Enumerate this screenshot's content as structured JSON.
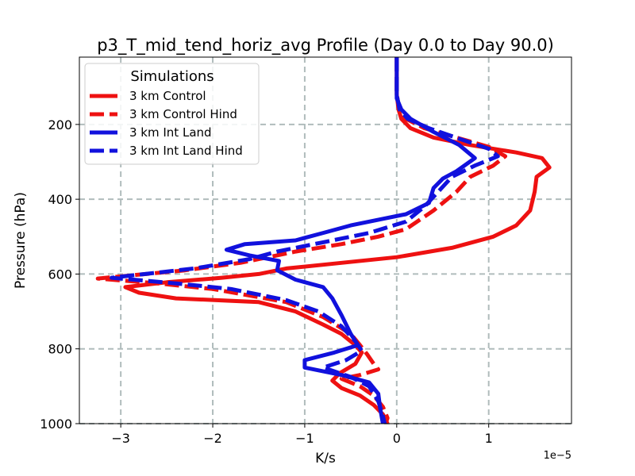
{
  "chart_data": {
    "type": "line",
    "title": "p3_T_mid_tend_horiz_avg Profile (Day 0.0 to Day 90.0)",
    "xlabel": "K/s",
    "ylabel": "Pressure (hPa)",
    "x_offset_label": "1e−5",
    "xlim": [
      -3.45,
      1.9
    ],
    "ylim": [
      1000,
      20
    ],
    "y_inverted": true,
    "grid": true,
    "x_ticks": [
      -3,
      -2,
      -1,
      0,
      1
    ],
    "x_tick_labels": [
      "−3",
      "−2",
      "−1",
      "0",
      "1"
    ],
    "y_ticks": [
      200,
      400,
      600,
      800,
      1000
    ],
    "y_tick_labels": [
      "200",
      "400",
      "600",
      "800",
      "1000"
    ],
    "legend": {
      "title": "Simulations",
      "placement": "top-left"
    },
    "series": [
      {
        "name": "3 km Control",
        "color": "#ee1111",
        "linestyle": "solid",
        "points": [
          [
            0,
            20
          ],
          [
            0,
            120
          ],
          [
            0.02,
            160
          ],
          [
            0.05,
            185
          ],
          [
            0.15,
            210
          ],
          [
            0.4,
            235
          ],
          [
            0.8,
            255
          ],
          [
            1.3,
            275
          ],
          [
            1.58,
            290
          ],
          [
            1.66,
            315
          ],
          [
            1.52,
            340
          ],
          [
            1.5,
            380
          ],
          [
            1.45,
            430
          ],
          [
            1.3,
            470
          ],
          [
            1.05,
            500
          ],
          [
            0.6,
            530
          ],
          [
            0,
            555
          ],
          [
            -0.6,
            570
          ],
          [
            -1.2,
            585
          ],
          [
            -1.5,
            600
          ],
          [
            -1.9,
            610
          ],
          [
            -2.5,
            622
          ],
          [
            -2.95,
            635
          ],
          [
            -2.8,
            650
          ],
          [
            -2.4,
            665
          ],
          [
            -1.5,
            675
          ],
          [
            -1.1,
            700
          ],
          [
            -0.8,
            735
          ],
          [
            -0.6,
            760
          ],
          [
            -0.45,
            790
          ],
          [
            -0.38,
            810
          ],
          [
            -0.45,
            840
          ],
          [
            -0.62,
            865
          ],
          [
            -0.7,
            885
          ],
          [
            -0.6,
            905
          ],
          [
            -0.4,
            925
          ],
          [
            -0.25,
            950
          ],
          [
            -0.15,
            975
          ],
          [
            -0.1,
            1000
          ]
        ]
      },
      {
        "name": "3 km Control Hind",
        "color": "#ee1111",
        "linestyle": "dashed",
        "points": [
          [
            0,
            20
          ],
          [
            0,
            120
          ],
          [
            0.03,
            160
          ],
          [
            0.1,
            185
          ],
          [
            0.3,
            210
          ],
          [
            0.65,
            235
          ],
          [
            1.0,
            260
          ],
          [
            1.18,
            285
          ],
          [
            1.05,
            310
          ],
          [
            0.8,
            340
          ],
          [
            0.65,
            380
          ],
          [
            0.4,
            430
          ],
          [
            0.1,
            480
          ],
          [
            -0.2,
            500
          ],
          [
            -0.6,
            520
          ],
          [
            -1.1,
            540
          ],
          [
            -1.5,
            560
          ],
          [
            -1.7,
            570
          ],
          [
            -2.3,
            590
          ],
          [
            -3.25,
            612
          ],
          [
            -2.6,
            625
          ],
          [
            -2.0,
            640
          ],
          [
            -1.2,
            675
          ],
          [
            -0.8,
            715
          ],
          [
            -0.5,
            760
          ],
          [
            -0.4,
            790
          ],
          [
            -0.32,
            815
          ],
          [
            -0.25,
            840
          ],
          [
            -0.2,
            855
          ],
          [
            -0.4,
            870
          ],
          [
            -0.6,
            880
          ],
          [
            -0.4,
            900
          ],
          [
            -0.25,
            925
          ],
          [
            -0.15,
            955
          ],
          [
            -0.1,
            985
          ],
          [
            -0.12,
            1000
          ]
        ]
      },
      {
        "name": "3 km Int Land",
        "color": "#1111dd",
        "linestyle": "solid",
        "points": [
          [
            0,
            20
          ],
          [
            0,
            130
          ],
          [
            0.05,
            160
          ],
          [
            0.15,
            185
          ],
          [
            0.4,
            220
          ],
          [
            0.68,
            255
          ],
          [
            0.85,
            290
          ],
          [
            0.65,
            325
          ],
          [
            0.5,
            345
          ],
          [
            0.4,
            370
          ],
          [
            0.35,
            410
          ],
          [
            0.1,
            440
          ],
          [
            -0.5,
            470
          ],
          [
            -0.8,
            490
          ],
          [
            -1.1,
            510
          ],
          [
            -1.65,
            520
          ],
          [
            -1.85,
            535
          ],
          [
            -1.6,
            550
          ],
          [
            -1.28,
            565
          ],
          [
            -1.3,
            590
          ],
          [
            -1.1,
            615
          ],
          [
            -0.8,
            635
          ],
          [
            -0.7,
            665
          ],
          [
            -0.6,
            710
          ],
          [
            -0.5,
            760
          ],
          [
            -0.42,
            790
          ],
          [
            -0.68,
            810
          ],
          [
            -1.0,
            830
          ],
          [
            -1.0,
            850
          ],
          [
            -0.6,
            870
          ],
          [
            -0.3,
            890
          ],
          [
            -0.2,
            920
          ],
          [
            -0.18,
            960
          ],
          [
            -0.15,
            1000
          ]
        ]
      },
      {
        "name": "3 km Int Land Hind",
        "color": "#1111dd",
        "linestyle": "dashed",
        "points": [
          [
            0,
            20
          ],
          [
            0,
            120
          ],
          [
            0.03,
            160
          ],
          [
            0.12,
            185
          ],
          [
            0.35,
            210
          ],
          [
            0.7,
            240
          ],
          [
            1.0,
            265
          ],
          [
            1.1,
            285
          ],
          [
            0.85,
            310
          ],
          [
            0.6,
            340
          ],
          [
            0.45,
            380
          ],
          [
            0.3,
            420
          ],
          [
            0.1,
            460
          ],
          [
            -0.3,
            490
          ],
          [
            -0.8,
            515
          ],
          [
            -1.3,
            540
          ],
          [
            -1.6,
            560
          ],
          [
            -2.2,
            585
          ],
          [
            -3.1,
            610
          ],
          [
            -2.4,
            625
          ],
          [
            -1.8,
            640
          ],
          [
            -1.2,
            670
          ],
          [
            -0.85,
            700
          ],
          [
            -0.6,
            740
          ],
          [
            -0.45,
            780
          ],
          [
            -0.38,
            805
          ],
          [
            -0.55,
            830
          ],
          [
            -0.8,
            850
          ],
          [
            -0.5,
            875
          ],
          [
            -0.3,
            900
          ],
          [
            -0.2,
            940
          ],
          [
            -0.15,
            980
          ],
          [
            -0.13,
            1000
          ]
        ]
      }
    ]
  }
}
